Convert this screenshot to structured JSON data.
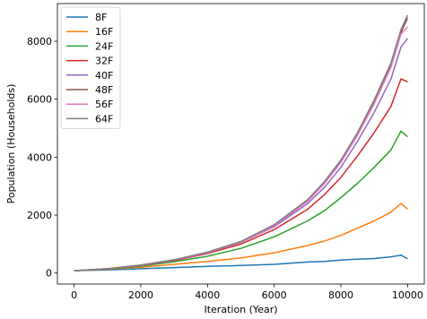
{
  "chart_data": {
    "type": "line",
    "title": "",
    "xlabel": "Iteration (Year)",
    "ylabel": "Population (Households)",
    "xlim": [
      -500,
      10500
    ],
    "ylim": [
      -380,
      9300
    ],
    "xticks": [
      0,
      2000,
      4000,
      6000,
      8000,
      10000
    ],
    "xtick_labels": [
      "0",
      "2000",
      "4000",
      "6000",
      "8000",
      "10000"
    ],
    "yticks": [
      0,
      2000,
      4000,
      6000,
      8000
    ],
    "ytick_labels": [
      "0",
      "2000",
      "4000",
      "6000",
      "8000"
    ],
    "grid": false,
    "legend_position": "upper-left",
    "x": [
      0,
      1000,
      2000,
      3000,
      4000,
      5000,
      6000,
      7000,
      7500,
      8000,
      8500,
      9000,
      9500,
      9800,
      10000
    ],
    "series": [
      {
        "name": "8F",
        "color": "#1f77b4",
        "values": [
          80,
          110,
          150,
          190,
          230,
          260,
          300,
          380,
          400,
          450,
          480,
          500,
          560,
          620,
          490
        ]
      },
      {
        "name": "16F",
        "color": "#ff7f0e",
        "values": [
          80,
          130,
          200,
          300,
          400,
          520,
          700,
          950,
          1100,
          1300,
          1550,
          1800,
          2100,
          2400,
          2200
        ]
      },
      {
        "name": "24F",
        "color": "#2ca02c",
        "values": [
          80,
          140,
          240,
          390,
          580,
          850,
          1250,
          1800,
          2150,
          2600,
          3100,
          3650,
          4250,
          4900,
          4700
        ]
      },
      {
        "name": "32F",
        "color": "#d62728",
        "values": [
          80,
          150,
          260,
          430,
          670,
          1000,
          1500,
          2200,
          2700,
          3300,
          4050,
          4850,
          5750,
          6700,
          6600
        ]
      },
      {
        "name": "40F",
        "color": "#9467bd",
        "values": [
          80,
          150,
          270,
          450,
          700,
          1060,
          1600,
          2400,
          2950,
          3650,
          4550,
          5550,
          6700,
          7800,
          8100
        ]
      },
      {
        "name": "48F",
        "color": "#8c564b",
        "values": [
          80,
          150,
          270,
          450,
          710,
          1080,
          1650,
          2500,
          3100,
          3850,
          4800,
          5900,
          7150,
          8300,
          8800
        ]
      },
      {
        "name": "56F",
        "color": "#e377c2",
        "values": [
          80,
          150,
          270,
          450,
          700,
          1070,
          1630,
          2480,
          3080,
          3820,
          4760,
          5850,
          7100,
          8250,
          8500
        ]
      },
      {
        "name": "64F",
        "color": "#7f7f7f",
        "values": [
          80,
          150,
          275,
          460,
          720,
          1090,
          1670,
          2530,
          3150,
          3900,
          4850,
          5980,
          7250,
          8400,
          8900
        ]
      }
    ]
  }
}
